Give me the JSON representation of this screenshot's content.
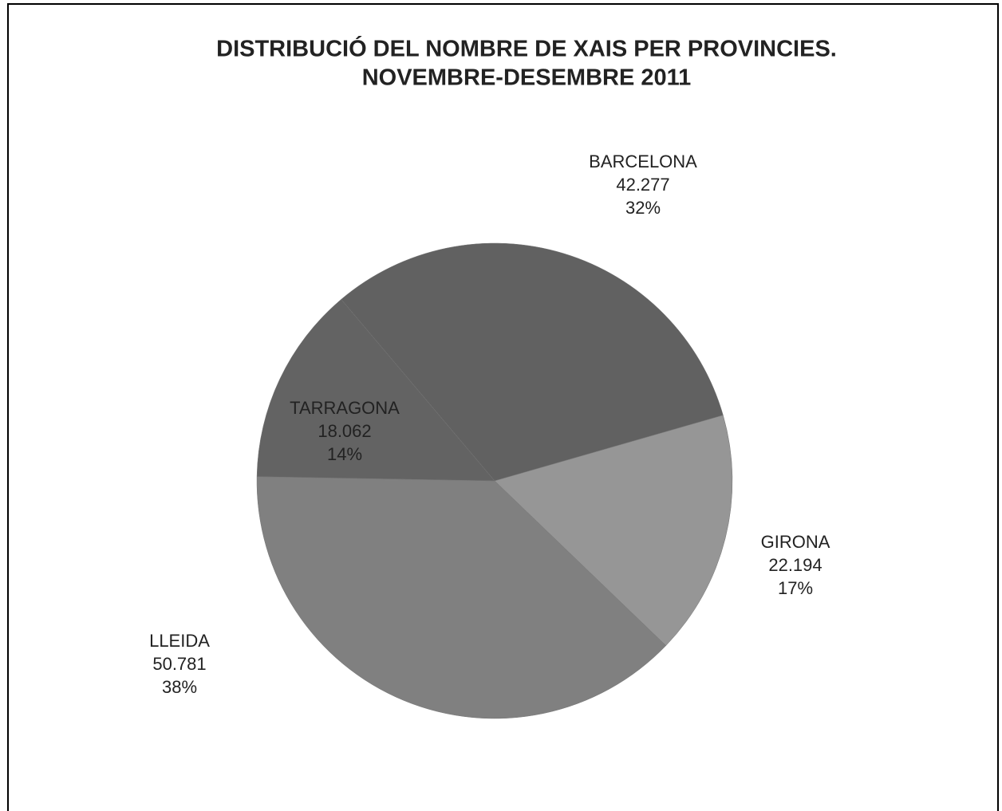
{
  "chart_data": {
    "type": "pie",
    "title": "DISTRIBUCIÓ DEL NOMBRE DE XAIS PER PROVINCIES.",
    "subtitle": "NOVEMBRE-DESEMBRE  2011",
    "categories": [
      "BARCELONA",
      "GIRONA",
      "LLEIDA",
      "TARRAGONA"
    ],
    "values": [
      42277,
      22194,
      50781,
      18062
    ],
    "value_labels": [
      "42.277",
      "22.194",
      "50.781",
      "18.062"
    ],
    "percent_labels": [
      "32%",
      "17%",
      "38%",
      "14%"
    ],
    "colors": [
      "#616161",
      "#969696",
      "#808080",
      "#636363"
    ]
  }
}
